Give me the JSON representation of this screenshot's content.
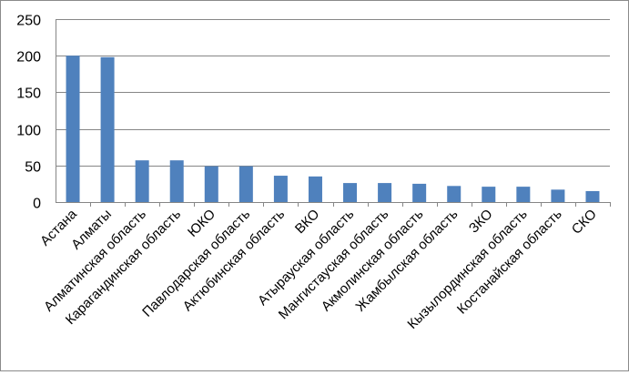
{
  "chart_data": {
    "type": "bar",
    "title": "",
    "xlabel": "",
    "ylabel": "",
    "ylim": [
      0,
      250
    ],
    "yticks": [
      0,
      50,
      100,
      150,
      200,
      250
    ],
    "grid": true,
    "legend": "none",
    "bar_color": "#4F81BD",
    "grid_color": "#868686",
    "categories": [
      "Астана",
      "Алматы",
      "Алматинская область",
      "Карагандинская область",
      "ЮКО",
      "Павлодарская область",
      "Актюбинская область",
      "ВКО",
      "Атырауская область",
      "Мангистауская область",
      "Акмолинская область",
      "Жамбылская область",
      "ЗКО",
      "Кызылординская область",
      "Костанайская область",
      "СКО"
    ],
    "values": [
      200,
      198,
      57,
      57,
      49,
      49,
      36,
      35,
      26,
      26,
      25,
      22,
      21,
      21,
      17,
      15
    ]
  }
}
